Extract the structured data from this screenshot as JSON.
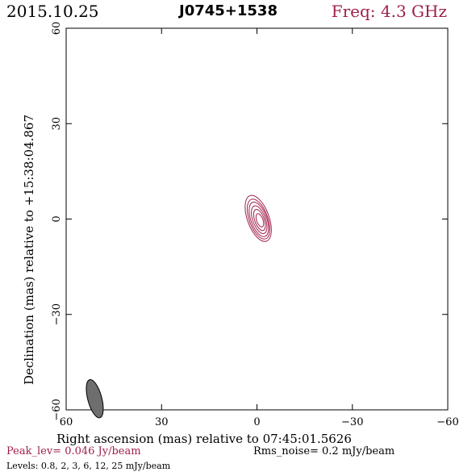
{
  "header": {
    "date": "2015.10.25",
    "source": "J0745+1538",
    "frequency": "Freq: 4.3 GHz"
  },
  "footer": {
    "peak": "Peak_lev=  0.046 Jy/beam",
    "rms": "Rms_noise=   0.2 mJy/beam",
    "levels": "Levels: 0.8,    2,    3,    6,   12,   25 mJy/beam"
  },
  "chart_data": {
    "type": "contour",
    "xlabel": "Right ascension (mas) relative to 07:45:01.5626",
    "ylabel": "Declination (mas) relative to +15:38:04.867",
    "xlim": [
      60,
      -60
    ],
    "ylim": [
      -60,
      60
    ],
    "x_ticks": [
      60,
      30,
      0,
      -30,
      -60
    ],
    "y_ticks": [
      -60,
      -30,
      0,
      30,
      60
    ],
    "x_tick_labels": [
      "60",
      "30",
      "0",
      "−30",
      "−60"
    ],
    "y_tick_labels": [
      "−60",
      "−30",
      "0",
      "30",
      "60"
    ],
    "contour_color": "#a0204a",
    "contour_levels_mjy": [
      0.8,
      2,
      3,
      6,
      12,
      25
    ],
    "contours": [
      {
        "level": 0.8,
        "center": [
          -0.4,
          0.2
        ],
        "semi_major_mas": 7.6,
        "semi_minor_mas": 3.4,
        "pa_deg": 160
      },
      {
        "level": 2,
        "center": [
          -0.5,
          0.0
        ],
        "semi_major_mas": 6.6,
        "semi_minor_mas": 2.9,
        "pa_deg": 160
      },
      {
        "level": 3,
        "center": [
          -0.6,
          -0.1
        ],
        "semi_major_mas": 5.7,
        "semi_minor_mas": 2.5,
        "pa_deg": 160
      },
      {
        "level": 6,
        "center": [
          -0.7,
          -0.2
        ],
        "semi_major_mas": 4.6,
        "semi_minor_mas": 2.0,
        "pa_deg": 160
      },
      {
        "level": 12,
        "center": [
          -0.8,
          -0.3
        ],
        "semi_major_mas": 3.5,
        "semi_minor_mas": 1.5,
        "pa_deg": 160
      },
      {
        "level": 25,
        "center": [
          -0.9,
          -0.4
        ],
        "semi_major_mas": 2.2,
        "semi_minor_mas": 1.0,
        "pa_deg": 160
      }
    ],
    "beam": {
      "center": [
        51,
        -56.5
      ],
      "major_mas": 6.2,
      "minor_mas": 2.2,
      "pa_deg": 165,
      "fill": "#6e6e6e"
    }
  }
}
